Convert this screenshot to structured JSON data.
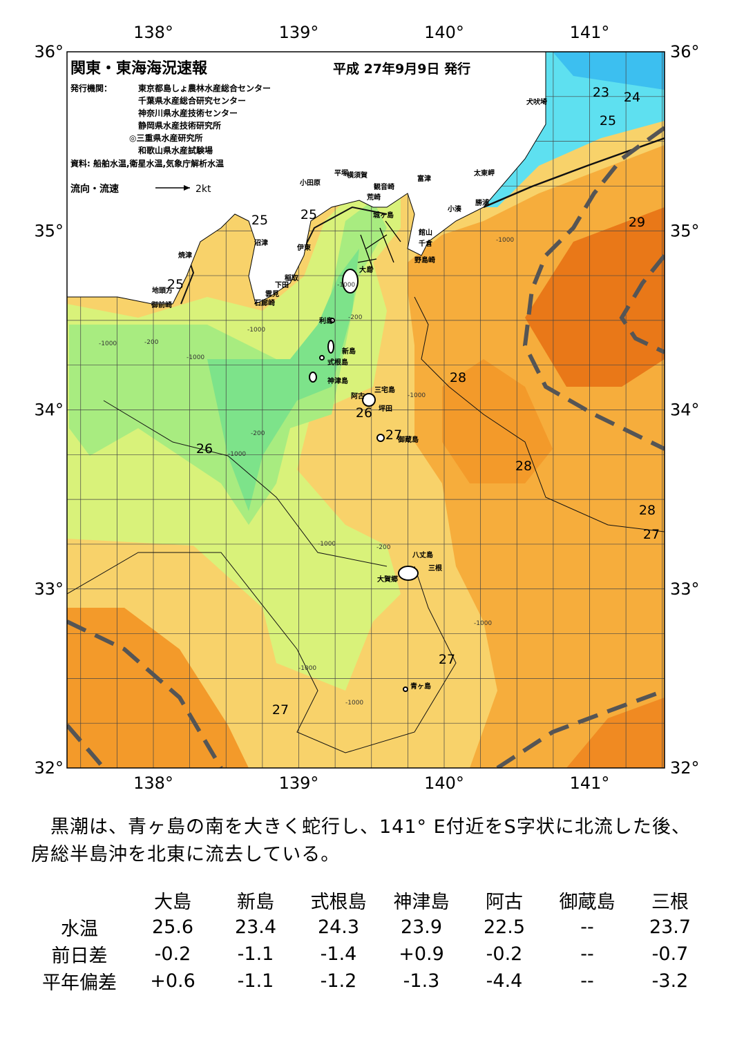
{
  "map": {
    "title": "関東・東海海況速報",
    "date": "平成 27年9月9日 発行",
    "issuer_label": "発行機関：",
    "issuers": [
      "東京都島しょ農林水産総合センター",
      "千葉県水産総合研究センター",
      "神奈川県水産技術センター",
      "静岡県水産技術研究所",
      "◎三重県水産研究所",
      "和歌山県水産試験場"
    ],
    "source": "資料: 船舶水温,衛星水温,気象庁解析水温",
    "legend": "流向・流速",
    "legend_scale": "2kt",
    "lon_labels": [
      "138°",
      "139°",
      "140°",
      "141°"
    ],
    "lat_labels": [
      "36°",
      "35°",
      "34°",
      "33°",
      "32°"
    ],
    "places": [
      "犬吠埼",
      "太東岬",
      "勝浦",
      "小湊",
      "富津",
      "横須賀",
      "平塚",
      "小田原",
      "観音崎",
      "荒崎",
      "城ヶ島",
      "館山",
      "千倉",
      "野島崎",
      "沼津",
      "伊東",
      "稲取",
      "下田",
      "雲見",
      "石廊崎",
      "焼津",
      "地頭方",
      "御前崎",
      "大島",
      "利島",
      "新島",
      "式根島",
      "神津島",
      "三宅島",
      "阿古",
      "坪田",
      "御蔵島",
      "八丈島",
      "三根",
      "大賀郷",
      "青ヶ島"
    ],
    "contour_labels": [
      "23",
      "24",
      "25",
      "29",
      "25",
      "25",
      "25",
      "28",
      "26",
      "27",
      "26",
      "28",
      "28",
      "27",
      "27",
      "27"
    ],
    "depth_labels": [
      "-200",
      "-1000",
      "-1000",
      "-200",
      "-1000",
      "-1000",
      "-200",
      "-200",
      "-1000",
      "-1000",
      "-1000",
      "-1000",
      "-1000",
      "-1000",
      "-1000"
    ]
  },
  "description": "黒潮は、青ヶ島の南を大きく蛇行し、141° E付近をS字状に北流した後、房総半島沖を北東に流去している。",
  "table": {
    "columns": [
      "大島",
      "新島",
      "式根島",
      "神津島",
      "阿古",
      "御蔵島",
      "三根"
    ],
    "rows": [
      {
        "label": "水温",
        "values": [
          "25.6",
          "23.4",
          "24.3",
          "23.9",
          "22.5",
          "--",
          "23.7"
        ]
      },
      {
        "label": "前日差",
        "values": [
          "-0.2",
          "-1.1",
          "-1.4",
          "+0.9",
          "-0.2",
          "--",
          "-0.7"
        ]
      },
      {
        "label": "平年偏差",
        "values": [
          "+0.6",
          "-1.1",
          "-1.2",
          "-1.3",
          "-4.4",
          "--",
          "-3.2"
        ]
      }
    ]
  }
}
